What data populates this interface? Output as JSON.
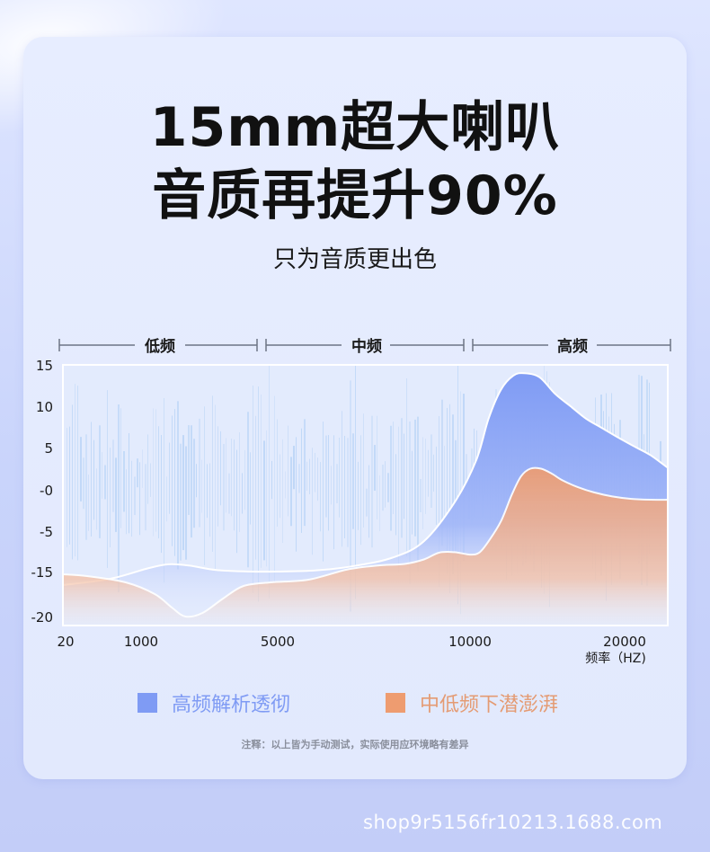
{
  "headline": {
    "line1": "15mm超大喇叭",
    "line2": "音质再提升90%",
    "subtitle": "只为音质更出色"
  },
  "bands": [
    {
      "label": "低频"
    },
    {
      "label": "中频"
    },
    {
      "label": "高频"
    }
  ],
  "legend": [
    {
      "label": "高频解析透彻",
      "color": "#7f9bf4"
    },
    {
      "label": "中低频下潜澎湃",
      "color": "#ee9c70"
    }
  ],
  "note": "注释：以上皆为手动测试，实际使用应环境略有差异",
  "watermark": "shop9r5156fr10213.1688.com",
  "chart_data": {
    "type": "area",
    "xlabel": "频率（HZ)",
    "x_ticks": [
      {
        "value": 20,
        "label": "20"
      },
      {
        "value": 1000,
        "label": "1000"
      },
      {
        "value": 5000,
        "label": "5000"
      },
      {
        "value": 10000,
        "label": "10000"
      },
      {
        "value": 20000,
        "label": "20000"
      }
    ],
    "y_ticks": [
      {
        "value": 15,
        "label": "15"
      },
      {
        "value": 10,
        "label": "10"
      },
      {
        "value": 5,
        "label": "5"
      },
      {
        "value": 0,
        "label": "-0"
      },
      {
        "value": -5,
        "label": "-5"
      },
      {
        "value": -15,
        "label": "-15"
      },
      {
        "value": -20,
        "label": "-20"
      }
    ],
    "series": [
      {
        "name": "高频解析透彻",
        "color": "#7f9bf4",
        "points": [
          [
            20,
            -16.5
          ],
          [
            600,
            -15.8
          ],
          [
            1200,
            -14.2
          ],
          [
            1800,
            -13.2
          ],
          [
            2400,
            -13.5
          ],
          [
            3200,
            -14.6
          ],
          [
            4200,
            -15.0
          ],
          [
            5000,
            -15.0
          ],
          [
            6000,
            -14.7
          ],
          [
            7000,
            -13.6
          ],
          [
            8000,
            -11.5
          ],
          [
            8800,
            -7.5
          ],
          [
            9600,
            -1.5
          ],
          [
            10400,
            3.5
          ],
          [
            11200,
            8.5
          ],
          [
            12000,
            12.0
          ],
          [
            12800,
            13.7
          ],
          [
            13500,
            14.0
          ],
          [
            14500,
            13.5
          ],
          [
            15500,
            11.5
          ],
          [
            16500,
            10.0
          ],
          [
            17500,
            8.5
          ],
          [
            18500,
            7.4
          ],
          [
            19500,
            6.3
          ],
          [
            20500,
            5.2
          ],
          [
            21500,
            4.1
          ],
          [
            22500,
            2.6
          ]
        ]
      },
      {
        "name": "中低频下潜澎湃",
        "color": "#ee9c70",
        "points": [
          [
            20,
            -15.3
          ],
          [
            300,
            -15.5
          ],
          [
            800,
            -16.2
          ],
          [
            1400,
            -17.5
          ],
          [
            1900,
            -19.0
          ],
          [
            2300,
            -20.0
          ],
          [
            2800,
            -19.6
          ],
          [
            3400,
            -18.0
          ],
          [
            4000,
            -16.6
          ],
          [
            4800,
            -16.2
          ],
          [
            5800,
            -15.9
          ],
          [
            6800,
            -14.5
          ],
          [
            7600,
            -13.5
          ],
          [
            8300,
            -13.1
          ],
          [
            8800,
            -12.0
          ],
          [
            9200,
            -10.3
          ],
          [
            9600,
            -10.2
          ],
          [
            10000,
            -10.8
          ],
          [
            10600,
            -10.3
          ],
          [
            11200,
            -7.5
          ],
          [
            12000,
            -3.8
          ],
          [
            12700,
            -0.6
          ],
          [
            13300,
            1.6
          ],
          [
            13900,
            2.5
          ],
          [
            14600,
            2.5
          ],
          [
            15300,
            1.9
          ],
          [
            16000,
            1.1
          ],
          [
            17000,
            0.3
          ],
          [
            18000,
            -0.3
          ],
          [
            19200,
            -0.8
          ],
          [
            20400,
            -1.1
          ],
          [
            21500,
            -1.2
          ],
          [
            22500,
            -1.2
          ]
        ]
      }
    ]
  }
}
